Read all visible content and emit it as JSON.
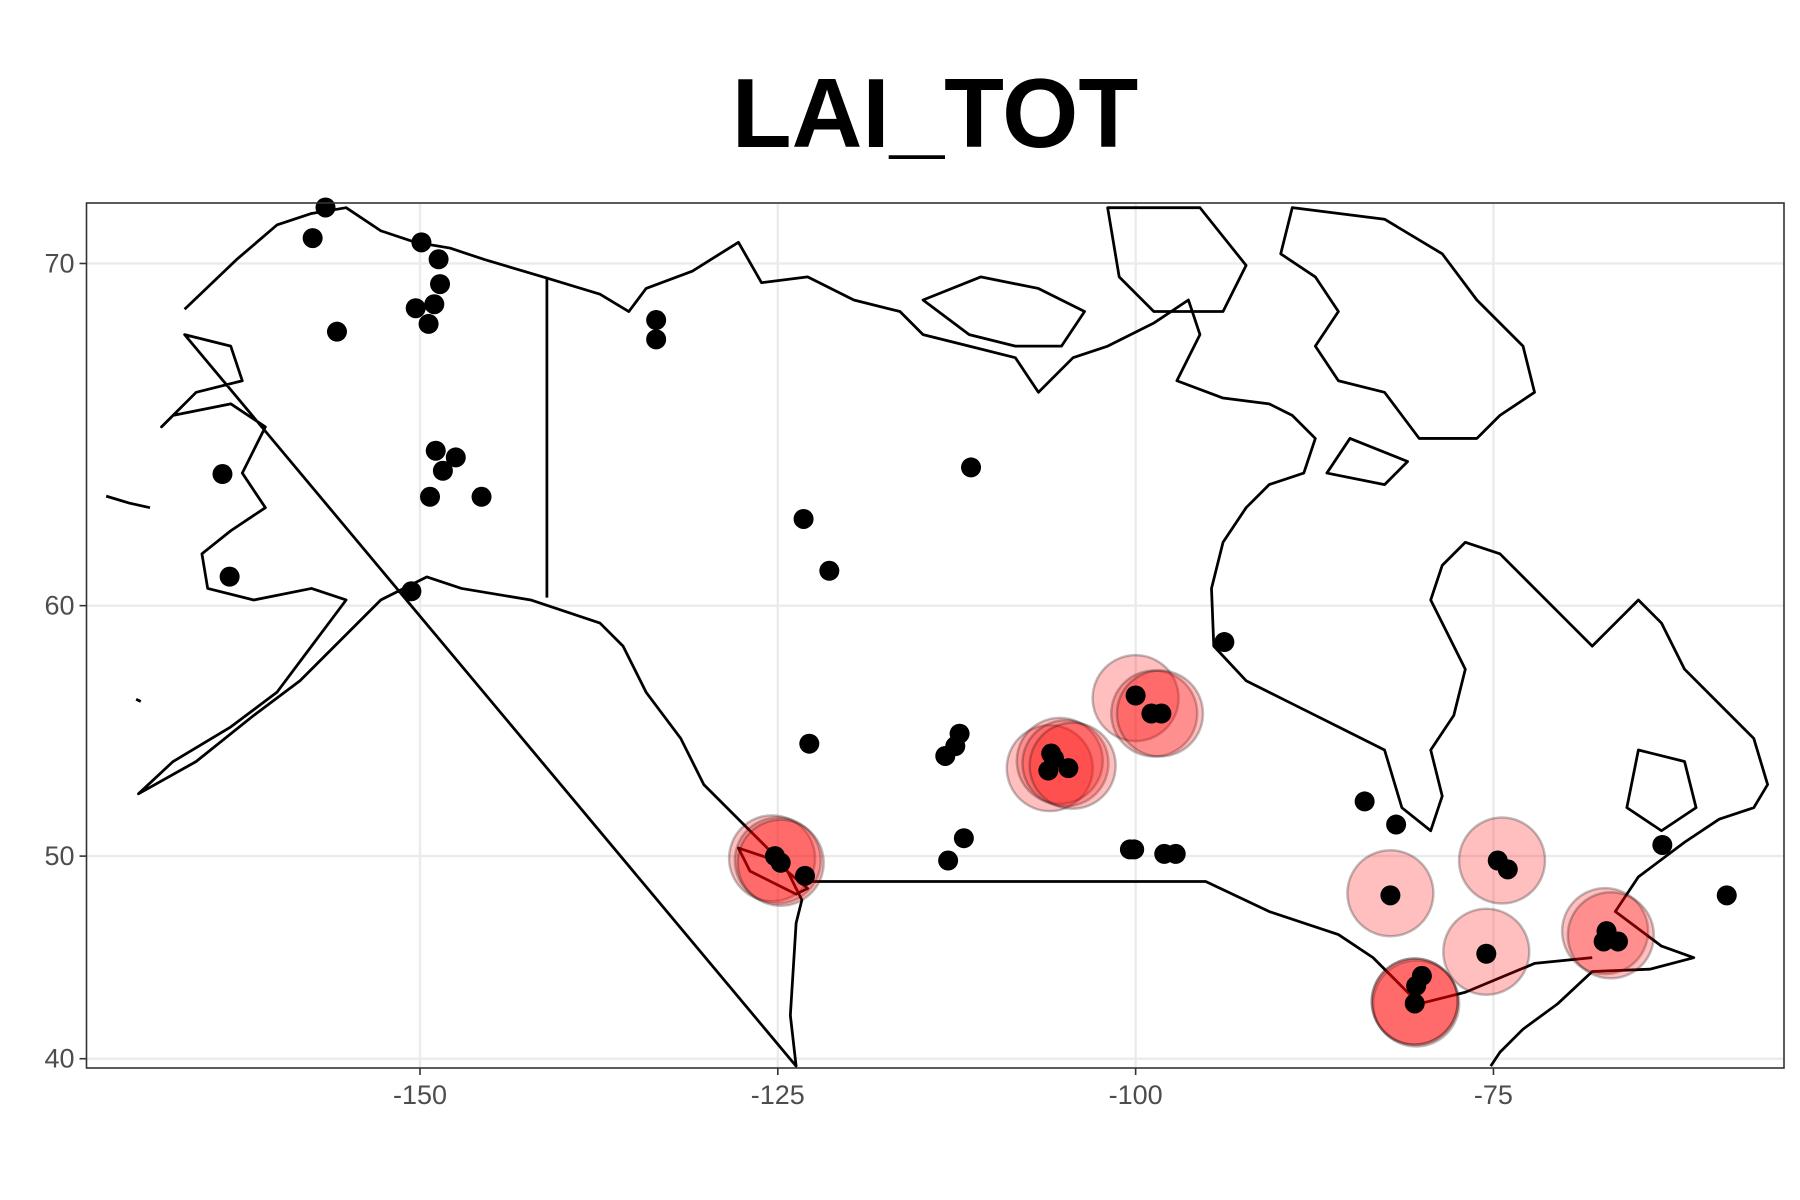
{
  "chart_data": {
    "type": "scatter",
    "title": "LAI_TOT",
    "projection": "mercator",
    "xlim": [
      -173.3,
      -54.7
    ],
    "ylim": [
      39.5,
      71.4
    ],
    "xticks": [
      -150,
      -125,
      -100,
      -75
    ],
    "yticks": [
      40,
      50,
      60,
      70
    ],
    "grid": true,
    "series": [
      {
        "color": "#ff0000",
        "opacity": 0.25,
        "x": [
          -125.4,
          -125.0,
          -124.8,
          -106.0,
          -105.3,
          -104.9,
          -104.4,
          -100.0,
          -98.7,
          -98.3,
          -82.2,
          -74.4,
          -75.5,
          -67.2,
          -66.8,
          -80.5,
          -80.4,
          -80.5
        ],
        "y": [
          49.9,
          49.8,
          49.7,
          53.8,
          54.1,
          54.0,
          53.9,
          56.6,
          56.0,
          56.0,
          48.3,
          49.8,
          45.5,
          46.5,
          46.3,
          43.0,
          42.9,
          43.0
        ]
      },
      {
        "color": "#000000",
        "x": [
          -156.6,
          -157.5,
          -149.9,
          -148.7,
          -148.6,
          -150.3,
          -149.0,
          -149.4,
          -155.8,
          -148.9,
          -147.5,
          -148.4,
          -163.8,
          -149.3,
          -145.7,
          -163.3,
          -150.6,
          -133.5,
          -133.5,
          -111.5,
          -123.2,
          -121.4,
          -93.8,
          -122.8,
          -112.3,
          -112.6,
          -113.3,
          -105.7,
          -106.1,
          -104.7,
          -105.9,
          -100.0,
          -98.9,
          -98.2,
          -84.0,
          -81.8,
          -112.0,
          -113.1,
          -100.4,
          -100.1,
          -98.0,
          -97.2,
          -125.2,
          -124.8,
          -123.1,
          -82.2,
          -74.7,
          -74.0,
          -63.2,
          -58.7,
          -75.5,
          -67.1,
          -67.3,
          -66.3,
          -80.0,
          -80.4,
          -80.5
        ],
        "y": [
          71.3,
          70.6,
          70.5,
          70.1,
          69.5,
          68.9,
          69.0,
          68.5,
          68.3,
          65.0,
          64.8,
          64.4,
          64.3,
          63.6,
          63.6,
          61.0,
          60.5,
          68.6,
          68.1,
          64.5,
          62.9,
          61.2,
          58.7,
          54.8,
          55.2,
          54.7,
          54.3,
          54.2,
          53.7,
          53.8,
          54.4,
          56.7,
          56.0,
          56.0,
          52.4,
          51.4,
          50.8,
          49.8,
          50.3,
          50.3,
          50.1,
          50.1,
          50.0,
          49.7,
          49.1,
          48.2,
          49.8,
          49.4,
          50.5,
          48.2,
          45.4,
          46.5,
          46.0,
          46.0,
          44.3,
          43.8,
          42.9
        ]
      }
    ]
  }
}
